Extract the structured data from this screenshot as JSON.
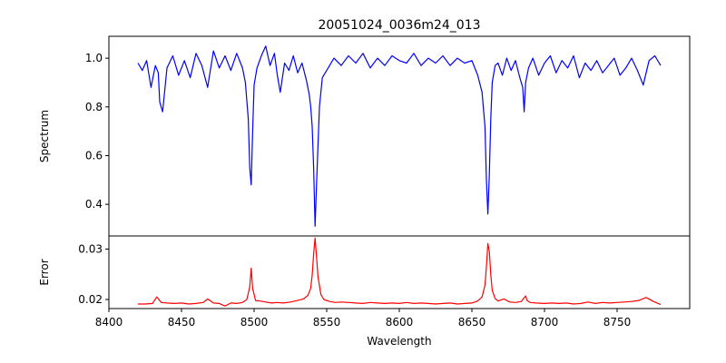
{
  "chart_data": {
    "type": "line",
    "title": "20051024_0036m24_013",
    "xlabel": "Wavelength",
    "xlim": [
      8400,
      8800
    ],
    "x_ticks": [
      "8400",
      "8450",
      "8500",
      "8550",
      "8600",
      "8650",
      "8700",
      "8750"
    ],
    "grid": false,
    "panels": [
      {
        "name": "spectrum",
        "ylabel": "Spectrum",
        "ylim": [
          0.27,
          1.09
        ],
        "y_ticks": [
          "0.4",
          "0.6",
          "0.8",
          "1.0"
        ],
        "color": "#0000ff",
        "x": [
          8420,
          8423,
          8426,
          8429,
          8432,
          8434,
          8435,
          8437,
          8440,
          8444,
          8448,
          8452,
          8456,
          8460,
          8464,
          8468,
          8472,
          8476,
          8480,
          8484,
          8488,
          8492,
          8494,
          8496,
          8497,
          8498,
          8499,
          8500,
          8502,
          8505,
          8508,
          8511,
          8514,
          8516,
          8518,
          8521,
          8524,
          8527,
          8530,
          8533,
          8536,
          8538,
          8539,
          8540,
          8541,
          8542,
          8543,
          8545,
          8547,
          8550,
          8555,
          8560,
          8565,
          8570,
          8575,
          8580,
          8585,
          8590,
          8595,
          8600,
          8605,
          8610,
          8615,
          8620,
          8625,
          8630,
          8635,
          8640,
          8645,
          8650,
          8654,
          8657,
          8659,
          8660,
          8661,
          8662,
          8663,
          8664,
          8666,
          8668,
          8671,
          8674,
          8677,
          8680,
          8683,
          8685,
          8686,
          8687,
          8689,
          8692,
          8696,
          8700,
          8704,
          8708,
          8712,
          8716,
          8720,
          8724,
          8728,
          8732,
          8736,
          8740,
          8744,
          8748,
          8752,
          8756,
          8760,
          8764,
          8768,
          8772,
          8776,
          8780
        ],
        "y": [
          0.98,
          0.95,
          0.99,
          0.88,
          0.97,
          0.94,
          0.82,
          0.78,
          0.96,
          1.01,
          0.93,
          0.99,
          0.92,
          1.02,
          0.97,
          0.88,
          1.03,
          0.96,
          1.01,
          0.95,
          1.02,
          0.96,
          0.9,
          0.75,
          0.55,
          0.48,
          0.7,
          0.89,
          0.96,
          1.01,
          1.05,
          0.97,
          1.02,
          0.93,
          0.86,
          0.98,
          0.95,
          1.01,
          0.94,
          0.98,
          0.91,
          0.85,
          0.8,
          0.72,
          0.55,
          0.31,
          0.48,
          0.8,
          0.92,
          0.95,
          1.0,
          0.97,
          1.01,
          0.98,
          1.02,
          0.96,
          1.0,
          0.97,
          1.01,
          0.99,
          0.98,
          1.02,
          0.97,
          1.0,
          0.98,
          1.01,
          0.97,
          1.0,
          0.98,
          0.99,
          0.93,
          0.86,
          0.72,
          0.5,
          0.36,
          0.52,
          0.75,
          0.9,
          0.97,
          0.98,
          0.93,
          1.0,
          0.95,
          0.99,
          0.92,
          0.88,
          0.78,
          0.9,
          0.96,
          1.0,
          0.93,
          0.98,
          1.01,
          0.94,
          0.99,
          0.96,
          1.01,
          0.92,
          0.98,
          0.95,
          0.99,
          0.94,
          0.97,
          1.0,
          0.93,
          0.96,
          1.0,
          0.95,
          0.89,
          0.99,
          1.01,
          0.97
        ]
      },
      {
        "name": "error",
        "ylabel": "Error",
        "ylim": [
          0.0182,
          0.0326
        ],
        "y_ticks": [
          "0.02",
          "0.03"
        ],
        "color": "#ff0000",
        "x": [
          8420,
          8425,
          8430,
          8433,
          8436,
          8440,
          8445,
          8450,
          8455,
          8460,
          8465,
          8468,
          8472,
          8476,
          8480,
          8484,
          8488,
          8492,
          8495,
          8497,
          8498,
          8499,
          8501,
          8504,
          8508,
          8512,
          8516,
          8520,
          8525,
          8530,
          8534,
          8537,
          8539,
          8540,
          8541,
          8542,
          8543,
          8544,
          8546,
          8548,
          8552,
          8556,
          8560,
          8565,
          8570,
          8575,
          8580,
          8585,
          8590,
          8595,
          8600,
          8605,
          8610,
          8615,
          8620,
          8625,
          8630,
          8635,
          8640,
          8645,
          8650,
          8654,
          8657,
          8659,
          8660,
          8661,
          8662,
          8663,
          8664,
          8666,
          8668,
          8672,
          8676,
          8680,
          8684,
          8687,
          8688,
          8690,
          8694,
          8700,
          8705,
          8710,
          8715,
          8720,
          8725,
          8730,
          8735,
          8740,
          8745,
          8750,
          8755,
          8760,
          8765,
          8770,
          8775,
          8780
        ],
        "y": [
          0.0191,
          0.0191,
          0.0192,
          0.0205,
          0.0194,
          0.0193,
          0.0192,
          0.0193,
          0.0191,
          0.0192,
          0.0194,
          0.0201,
          0.0193,
          0.0192,
          0.0187,
          0.0193,
          0.0192,
          0.0194,
          0.02,
          0.0225,
          0.0262,
          0.0222,
          0.0198,
          0.0197,
          0.0195,
          0.0193,
          0.0194,
          0.0193,
          0.0195,
          0.0198,
          0.0201,
          0.0208,
          0.0222,
          0.0248,
          0.029,
          0.0322,
          0.0285,
          0.0245,
          0.021,
          0.02,
          0.0196,
          0.0194,
          0.0195,
          0.0194,
          0.0193,
          0.0192,
          0.0194,
          0.0193,
          0.0192,
          0.0193,
          0.0192,
          0.0194,
          0.0192,
          0.0193,
          0.0192,
          0.0191,
          0.0192,
          0.0193,
          0.0191,
          0.0192,
          0.0193,
          0.0197,
          0.0205,
          0.0228,
          0.0265,
          0.0311,
          0.0295,
          0.025,
          0.0218,
          0.0202,
          0.0197,
          0.0201,
          0.0195,
          0.0194,
          0.0196,
          0.0207,
          0.0198,
          0.0194,
          0.0193,
          0.0192,
          0.0193,
          0.0192,
          0.0193,
          0.0191,
          0.0192,
          0.0195,
          0.0192,
          0.0194,
          0.0193,
          0.0194,
          0.0195,
          0.0196,
          0.0198,
          0.0204,
          0.0196,
          0.019
        ]
      }
    ]
  }
}
